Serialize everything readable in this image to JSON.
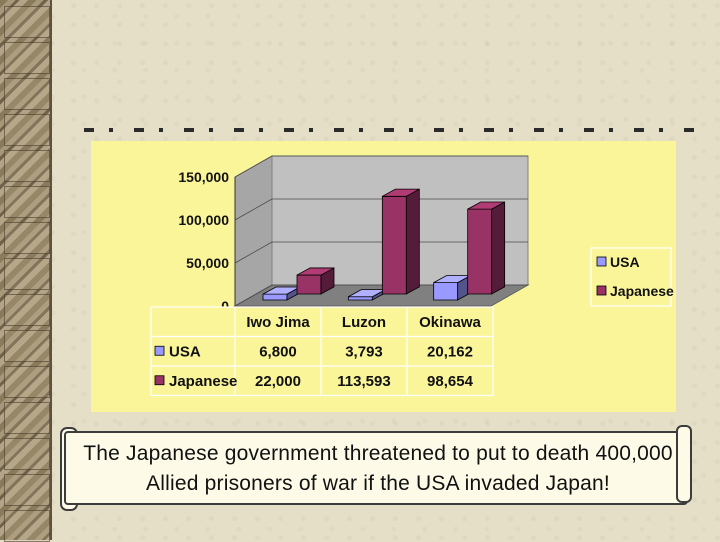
{
  "caption": {
    "line1": "The Japanese government threatened to put to death 400,000",
    "line2": "Allied prisoners of war if the USA invaded Japan!"
  },
  "colors": {
    "usa": "#9999ff",
    "japanese": "#993366",
    "panel": "#fbf59a",
    "plot_wall": "#c0c0c0"
  },
  "chart_data": {
    "type": "bar",
    "categories": [
      "Iwo Jima",
      "Luzon",
      "Okinawa"
    ],
    "series": [
      {
        "name": "USA",
        "values": [
          6800,
          3793,
          20162
        ],
        "labels": [
          "6,800",
          "3,793",
          "20,162"
        ]
      },
      {
        "name": "Japanese",
        "values": [
          22000,
          113593,
          98654
        ],
        "labels": [
          "22,000",
          "113,593",
          "98,654"
        ]
      }
    ],
    "ylim": [
      0,
      150000
    ],
    "yticks": [
      0,
      50000,
      100000,
      150000
    ],
    "ytick_labels": [
      "0",
      "50,000",
      "100,000",
      "150,000"
    ],
    "grid": true,
    "legend": "right",
    "data_table": true,
    "title": "",
    "xlabel": "",
    "ylabel": ""
  }
}
